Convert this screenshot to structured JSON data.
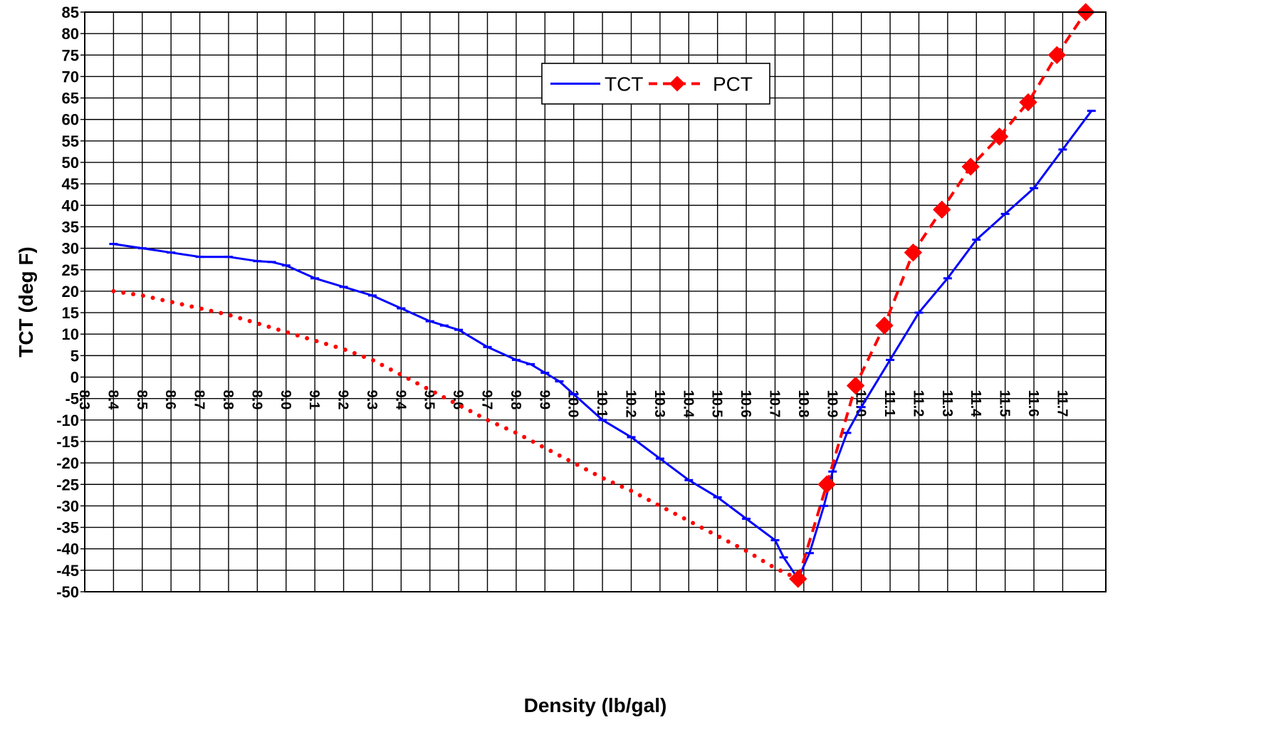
{
  "chart_data": {
    "type": "line",
    "title": "",
    "xlabel": "Density (lb/gal)",
    "ylabel": "TCT (deg F)",
    "xlim": [
      8.3,
      11.85
    ],
    "ylim": [
      -50,
      85
    ],
    "x_ticks": [
      8.3,
      8.4,
      8.5,
      8.6,
      8.7,
      8.8,
      8.9,
      9.0,
      9.1,
      9.2,
      9.3,
      9.4,
      9.5,
      9.6,
      9.7,
      9.8,
      9.9,
      10.0,
      10.1,
      10.2,
      10.3,
      10.4,
      10.5,
      10.6,
      10.7,
      10.8,
      10.9,
      11.0,
      11.1,
      11.2,
      11.3,
      11.4,
      11.5,
      11.6,
      11.7
    ],
    "x_tick_labels": [
      "8.3",
      "8.4",
      "8.5",
      "8.6",
      "8.7",
      "8.8",
      "8.9",
      "9.0",
      "9.1",
      "9.2",
      "9.3",
      "9.4",
      "9.5",
      "9.6",
      "9.7",
      "9.8",
      "9.9",
      "10.0",
      "10.1",
      "10.2",
      "10.3",
      "10.4",
      "10.5",
      "10.6",
      "10.7",
      "10.8",
      "10.9",
      "11.0",
      "11.1",
      "11.2",
      "11.3",
      "11.4",
      "11.5",
      "11.6",
      "11.7"
    ],
    "y_ticks": [
      -50,
      -45,
      -40,
      -35,
      -30,
      -25,
      -20,
      -15,
      -10,
      -5,
      0,
      5,
      10,
      15,
      20,
      25,
      30,
      35,
      40,
      45,
      50,
      55,
      60,
      65,
      70,
      75,
      80,
      85
    ],
    "y_tick_labels": [
      "-50",
      "-45",
      "-40",
      "-35",
      "-30",
      "-25",
      "-20",
      "-15",
      "-10",
      "-5",
      "0",
      "5",
      "10",
      "15",
      "20",
      "25",
      "30",
      "35",
      "40",
      "45",
      "50",
      "55",
      "60",
      "65",
      "70",
      "75",
      "80",
      "85"
    ],
    "grid": true,
    "legend": "top-center",
    "series": [
      {
        "name": "TCT",
        "color": "#0000ff",
        "line_style": "solid",
        "marker": "dash",
        "x": [
          8.4,
          8.5,
          8.6,
          8.7,
          8.8,
          8.9,
          8.95,
          9.0,
          9.1,
          9.2,
          9.3,
          9.4,
          9.5,
          9.55,
          9.6,
          9.7,
          9.8,
          9.85,
          9.9,
          9.95,
          10.0,
          10.1,
          10.2,
          10.3,
          10.4,
          10.5,
          10.6,
          10.7,
          10.73,
          10.78,
          10.82,
          10.87,
          10.9,
          10.95,
          11.0,
          11.1,
          11.2,
          11.3,
          11.4,
          11.5,
          11.6,
          11.7,
          11.8
        ],
        "y": [
          31,
          30,
          29,
          28,
          28,
          27,
          26.8,
          26,
          23,
          21,
          19,
          16,
          13,
          12,
          11,
          7,
          4,
          3,
          1,
          -1,
          -4,
          -10,
          -14,
          -19,
          -24,
          -28,
          -33,
          -38,
          -42,
          -47,
          -41,
          -30,
          -22,
          -13,
          -7,
          4,
          15,
          23,
          32,
          38,
          44,
          53,
          62
        ]
      },
      {
        "name": "PCT",
        "color": "#ff0000",
        "line_style": "dotted",
        "marker": "none",
        "x": [
          8.4,
          8.5,
          8.6,
          8.7,
          8.8,
          8.9,
          9.0,
          9.1,
          9.2,
          9.3,
          9.4,
          9.5,
          9.6,
          9.7,
          9.8,
          9.9,
          10.0,
          10.1,
          10.2,
          10.3,
          10.4,
          10.5,
          10.6,
          10.7,
          10.78
        ],
        "y": [
          20,
          19,
          17.5,
          16,
          14.5,
          12.5,
          10.5,
          8.5,
          6.5,
          4,
          0.5,
          -3,
          -6.5,
          -10,
          -13,
          -16.5,
          -20,
          -23.5,
          -26.5,
          -30,
          -33.5,
          -37,
          -40.5,
          -44.5,
          -47
        ]
      },
      {
        "name": "PCT",
        "color": "#ff0000",
        "line_style": "dashed",
        "marker": "diamond",
        "x": [
          10.78,
          10.88,
          10.98,
          11.08,
          11.18,
          11.28,
          11.38,
          11.48,
          11.58,
          11.68,
          11.78
        ],
        "y": [
          -47,
          -25,
          -2,
          12,
          29,
          39,
          49,
          56,
          64,
          75,
          85
        ]
      }
    ],
    "legend_entries": [
      {
        "label": "TCT",
        "color": "#0000ff",
        "line_style": "solid",
        "marker": "none"
      },
      {
        "label": "PCT",
        "color": "#ff0000",
        "line_style": "dashed",
        "marker": "diamond"
      }
    ]
  }
}
